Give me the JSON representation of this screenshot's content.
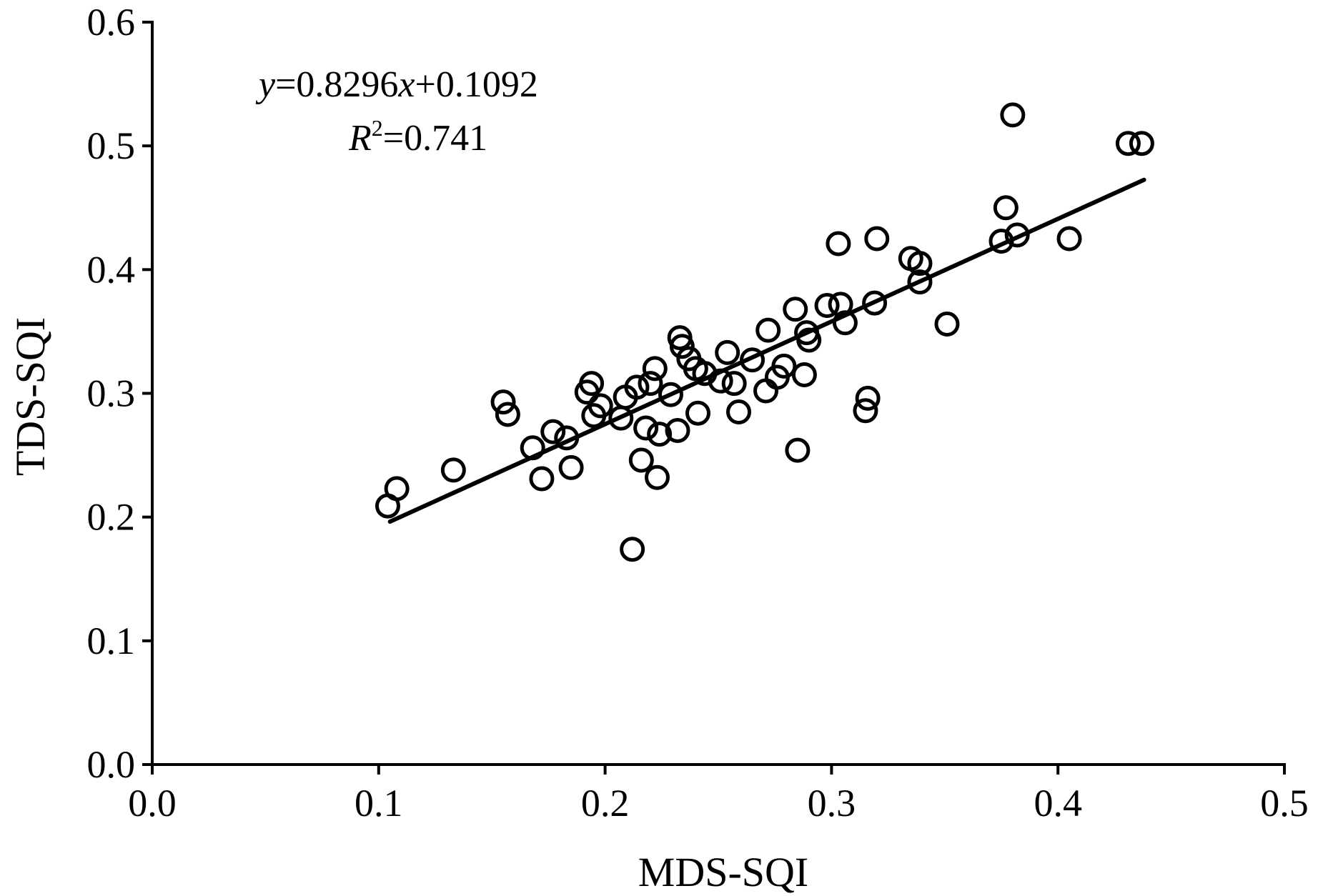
{
  "chart_data": {
    "type": "scatter",
    "xlabel": "MDS-SQI",
    "ylabel": "TDS-SQI",
    "xlim": [
      0.0,
      0.5
    ],
    "ylim": [
      0.0,
      0.6
    ],
    "x_ticks": [
      "0.0",
      "0.1",
      "0.2",
      "0.3",
      "0.4",
      "0.5"
    ],
    "y_ticks": [
      "0.0",
      "0.1",
      "0.2",
      "0.3",
      "0.4",
      "0.5",
      "0.6"
    ],
    "equation": {
      "y_var": "y",
      "eq_mid": "=0.8296",
      "x_var": "x",
      "eq_tail": "+0.1092",
      "r_var": "R",
      "r_sup": "2",
      "r_tail": "=0.741"
    },
    "trendline": {
      "slope": 0.8296,
      "intercept": 0.1092,
      "x_range": [
        0.105,
        0.438
      ]
    },
    "points": [
      [
        0.104,
        0.209
      ],
      [
        0.108,
        0.223
      ],
      [
        0.133,
        0.238
      ],
      [
        0.155,
        0.293
      ],
      [
        0.157,
        0.283
      ],
      [
        0.168,
        0.256
      ],
      [
        0.172,
        0.231
      ],
      [
        0.177,
        0.269
      ],
      [
        0.183,
        0.264
      ],
      [
        0.185,
        0.24
      ],
      [
        0.192,
        0.301
      ],
      [
        0.194,
        0.308
      ],
      [
        0.195,
        0.282
      ],
      [
        0.198,
        0.29
      ],
      [
        0.207,
        0.28
      ],
      [
        0.209,
        0.297
      ],
      [
        0.212,
        0.174
      ],
      [
        0.214,
        0.305
      ],
      [
        0.216,
        0.246
      ],
      [
        0.218,
        0.272
      ],
      [
        0.22,
        0.308
      ],
      [
        0.222,
        0.32
      ],
      [
        0.223,
        0.232
      ],
      [
        0.224,
        0.267
      ],
      [
        0.229,
        0.299
      ],
      [
        0.232,
        0.27
      ],
      [
        0.233,
        0.345
      ],
      [
        0.234,
        0.338
      ],
      [
        0.237,
        0.328
      ],
      [
        0.24,
        0.32
      ],
      [
        0.241,
        0.284
      ],
      [
        0.244,
        0.316
      ],
      [
        0.251,
        0.31
      ],
      [
        0.254,
        0.333
      ],
      [
        0.257,
        0.308
      ],
      [
        0.259,
        0.285
      ],
      [
        0.265,
        0.327
      ],
      [
        0.271,
        0.302
      ],
      [
        0.272,
        0.351
      ],
      [
        0.276,
        0.313
      ],
      [
        0.279,
        0.322
      ],
      [
        0.284,
        0.368
      ],
      [
        0.285,
        0.254
      ],
      [
        0.288,
        0.315
      ],
      [
        0.289,
        0.349
      ],
      [
        0.29,
        0.343
      ],
      [
        0.298,
        0.371
      ],
      [
        0.303,
        0.421
      ],
      [
        0.304,
        0.372
      ],
      [
        0.306,
        0.357
      ],
      [
        0.315,
        0.286
      ],
      [
        0.316,
        0.296
      ],
      [
        0.319,
        0.373
      ],
      [
        0.32,
        0.425
      ],
      [
        0.335,
        0.409
      ],
      [
        0.339,
        0.405
      ],
      [
        0.339,
        0.39
      ],
      [
        0.351,
        0.356
      ],
      [
        0.375,
        0.423
      ],
      [
        0.377,
        0.45
      ],
      [
        0.38,
        0.525
      ],
      [
        0.382,
        0.428
      ],
      [
        0.405,
        0.425
      ],
      [
        0.431,
        0.502
      ],
      [
        0.437,
        0.502
      ]
    ]
  }
}
